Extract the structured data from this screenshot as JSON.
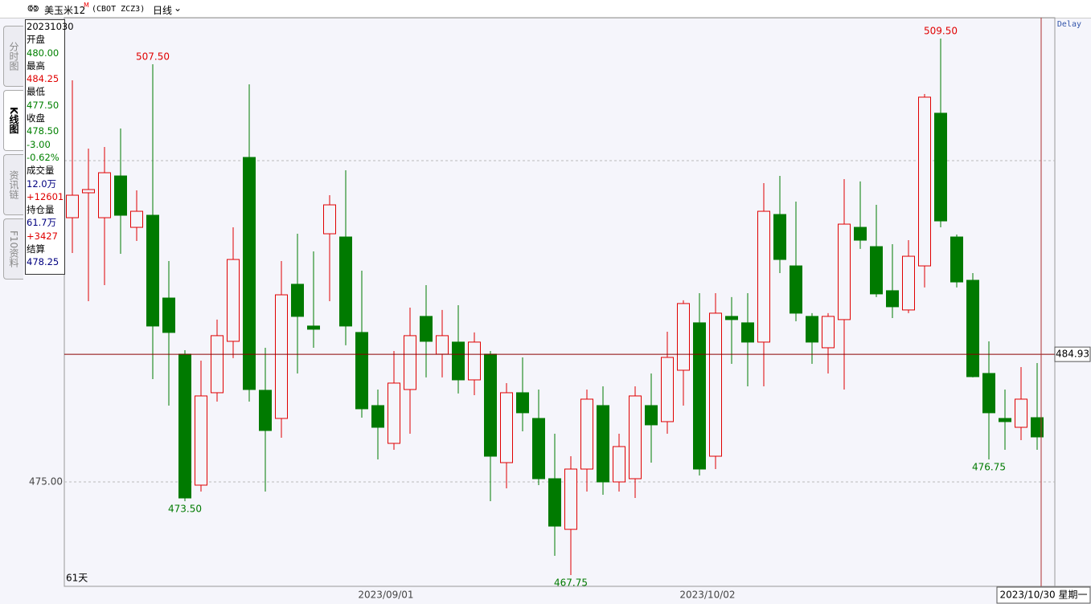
{
  "header": {
    "symbol": "美玉米12",
    "suffix": "M",
    "code": "(CBOT ZCZ3)",
    "period": "日线"
  },
  "tabs": [
    "分时图",
    "K线图",
    "资讯链",
    "F10资料"
  ],
  "info_panel": [
    {
      "text": "20231030",
      "color": "#000000"
    },
    {
      "text": "开盘",
      "color": "#000000"
    },
    {
      "text": "480.00",
      "color": "#008000"
    },
    {
      "text": "最高",
      "color": "#000000"
    },
    {
      "text": "484.25",
      "color": "#e00000"
    },
    {
      "text": "最低",
      "color": "#000000"
    },
    {
      "text": "477.50",
      "color": "#008000"
    },
    {
      "text": "收盘",
      "color": "#000000"
    },
    {
      "text": "478.50",
      "color": "#008000"
    },
    {
      "text": "-3.00",
      "color": "#008000"
    },
    {
      "text": "-0.62%",
      "color": "#008000"
    },
    {
      "text": "成交量",
      "color": "#000000"
    },
    {
      "text": "12.0万",
      "color": "#000080"
    },
    {
      "text": "+12601",
      "color": "#e00000"
    },
    {
      "text": "持仓量",
      "color": "#000000"
    },
    {
      "text": "61.7万",
      "color": "#000080"
    },
    {
      "text": "+3427",
      "color": "#e00000"
    },
    {
      "text": "结算",
      "color": "#000000"
    },
    {
      "text": "478.25",
      "color": "#000080"
    }
  ],
  "chart_data": {
    "type": "candlestick",
    "delay_label": "Delay",
    "bar_count_label": "61天",
    "up_color": "#e00000",
    "down_color": "#007a00",
    "ylim": [
      466.875,
      511.125
    ],
    "yticks": [
      {
        "value": 475,
        "label": "475.00"
      }
    ],
    "grid_lines": [
      475,
      500
    ],
    "categories": [
      null,
      null,
      null,
      null,
      null,
      null,
      null,
      null,
      null,
      null,
      null,
      null,
      null,
      null,
      null,
      null,
      null,
      null,
      null,
      null,
      "2023/09/01",
      null,
      null,
      null,
      null,
      null,
      null,
      null,
      null,
      null,
      null,
      null,
      null,
      null,
      null,
      null,
      null,
      null,
      null,
      null,
      "2023/10/02",
      null,
      null,
      null,
      null,
      null,
      null,
      null,
      null,
      null,
      null,
      null,
      null,
      null,
      null,
      null,
      null,
      null,
      null,
      null,
      null
    ],
    "open": [
      495.56,
      497.5,
      495.56,
      498.81,
      494.81,
      495.75,
      489.31,
      484.94,
      474.75,
      481.94,
      485.94,
      500.25,
      482.13,
      479.94,
      490.38,
      487.13,
      494.31,
      494.06,
      486.63,
      480.94,
      478.0,
      482.19,
      487.88,
      484.94,
      485.88,
      482.94,
      484.94,
      476.5,
      481.94,
      479.94,
      475.25,
      471.31,
      476.0,
      480.94,
      475.0,
      475.25,
      480.94,
      479.69,
      483.69,
      487.38,
      477.0,
      487.88,
      487.38,
      485.88,
      495.81,
      491.81,
      487.88,
      485.44,
      487.63,
      494.81,
      493.31,
      489.88,
      488.38,
      491.81,
      503.69,
      494.06,
      490.69,
      483.44,
      479.94,
      479.25,
      480.0
    ],
    "high": [
      506.25,
      500.94,
      501.06,
      502.5,
      497.69,
      507.5,
      492.19,
      485.25,
      484.44,
      487.63,
      494.81,
      505.94,
      485.44,
      492.19,
      494.31,
      492.94,
      497.31,
      499.25,
      491.44,
      482.19,
      485.19,
      488.56,
      490.31,
      488.38,
      488.75,
      486.63,
      485.19,
      482.69,
      484.69,
      482.19,
      478.75,
      477.0,
      482.19,
      482.44,
      478.75,
      482.44,
      483.44,
      486.69,
      489.13,
      489.69,
      489.69,
      489.38,
      489.69,
      498.25,
      498.81,
      496.81,
      488.13,
      488.13,
      498.56,
      498.38,
      496.56,
      493.5,
      493.81,
      505.19,
      509.5,
      494.25,
      491.25,
      485.94,
      482.19,
      483.94,
      484.25
    ],
    "low": [
      492.81,
      489.06,
      490.31,
      492.75,
      493.75,
      483.0,
      480.94,
      473.5,
      474.25,
      481.25,
      484.63,
      481.25,
      474.25,
      478.44,
      483.44,
      485.44,
      489.06,
      485.63,
      480.0,
      476.75,
      477.5,
      478.75,
      483.13,
      483.13,
      481.88,
      481.75,
      473.5,
      474.5,
      478.94,
      474.75,
      469.25,
      467.75,
      474.25,
      474.0,
      474.25,
      473.75,
      476.5,
      478.75,
      480.94,
      475.5,
      476.0,
      484.19,
      482.44,
      482.44,
      491.25,
      487.5,
      484.19,
      483.44,
      482.19,
      493.13,
      489.38,
      487.75,
      488.13,
      490.13,
      494.81,
      490.13,
      483.13,
      476.75,
      477.5,
      478.25,
      477.5
    ],
    "close": [
      497.31,
      497.75,
      499.06,
      495.75,
      496.06,
      487.13,
      486.63,
      473.75,
      481.69,
      486.38,
      492.31,
      482.19,
      479.0,
      489.56,
      487.88,
      486.88,
      496.56,
      487.13,
      480.69,
      479.25,
      482.69,
      486.38,
      485.94,
      486.38,
      482.94,
      485.88,
      477.0,
      481.94,
      480.38,
      475.25,
      471.56,
      476.0,
      481.44,
      475.0,
      477.75,
      481.69,
      479.44,
      484.69,
      488.88,
      476.0,
      488.13,
      487.63,
      485.88,
      496.06,
      492.31,
      488.13,
      485.88,
      487.88,
      495.06,
      493.81,
      489.63,
      488.63,
      492.56,
      504.94,
      495.31,
      490.56,
      483.19,
      480.38,
      479.69,
      481.44,
      478.5
    ],
    "high_value_labels": [
      null,
      null,
      null,
      null,
      null,
      "507.50",
      null,
      null,
      null,
      null,
      null,
      null,
      null,
      null,
      null,
      null,
      null,
      null,
      null,
      null,
      null,
      null,
      null,
      null,
      null,
      null,
      null,
      null,
      null,
      null,
      null,
      null,
      null,
      null,
      null,
      null,
      null,
      null,
      null,
      null,
      null,
      null,
      null,
      null,
      null,
      null,
      null,
      null,
      null,
      null,
      null,
      null,
      null,
      null,
      "509.50",
      null,
      null,
      null,
      null,
      null,
      null
    ],
    "low_value_labels": [
      null,
      null,
      null,
      null,
      null,
      null,
      null,
      "473.50",
      null,
      null,
      null,
      null,
      null,
      null,
      null,
      null,
      null,
      null,
      null,
      null,
      null,
      null,
      null,
      null,
      null,
      null,
      null,
      null,
      null,
      null,
      null,
      "467.75",
      null,
      null,
      null,
      null,
      null,
      null,
      null,
      null,
      null,
      null,
      null,
      null,
      null,
      null,
      null,
      null,
      null,
      null,
      null,
      null,
      null,
      null,
      null,
      null,
      null,
      "476.75",
      null,
      null,
      null
    ],
    "crosshair": {
      "value": 484.93,
      "date_label": "2023/10/30 星期一"
    }
  }
}
